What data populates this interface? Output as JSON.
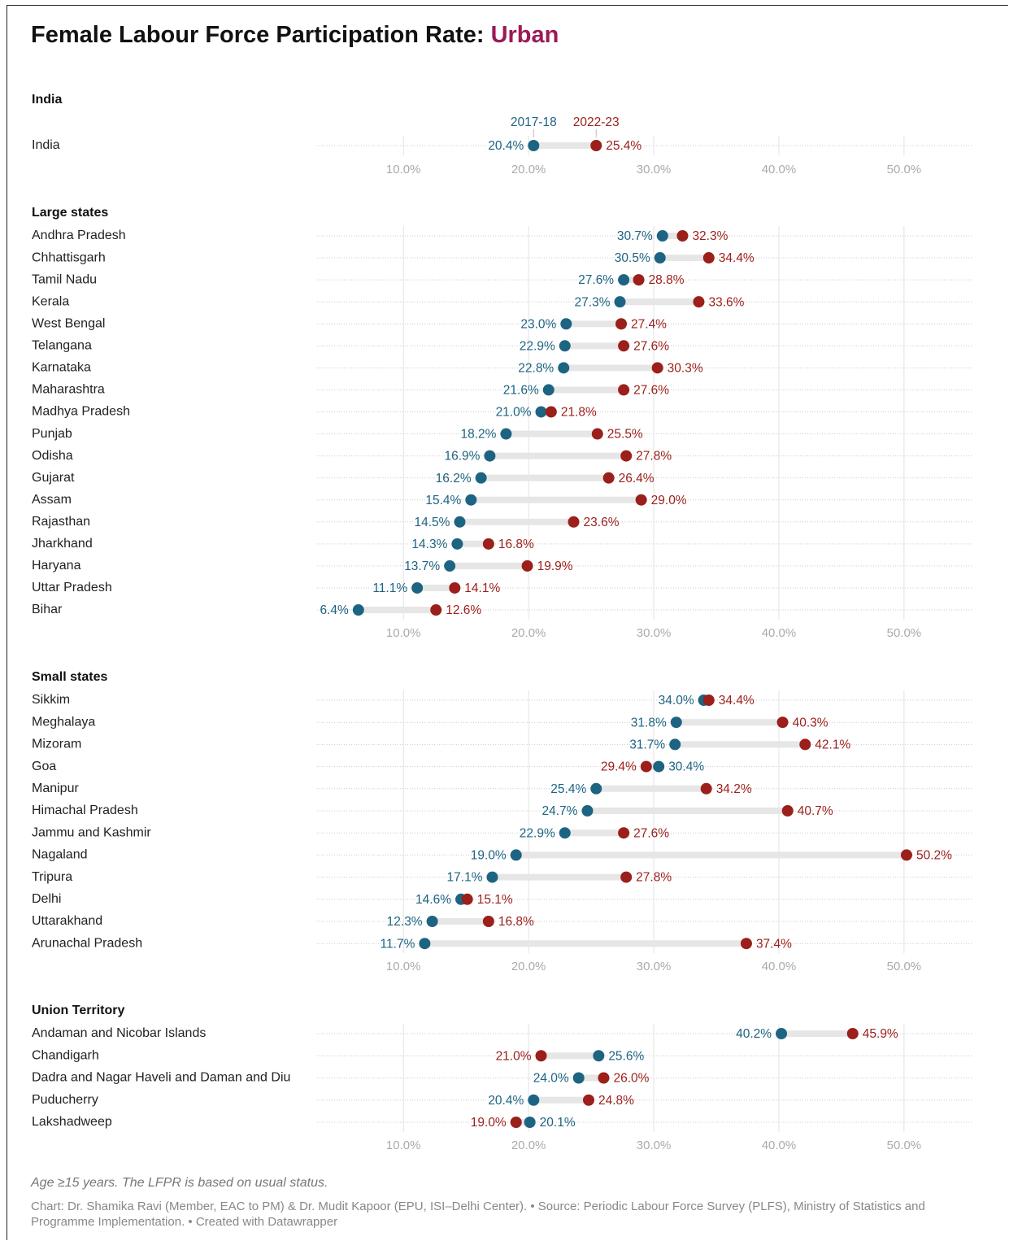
{
  "title": "Female Labour Force Participation Rate:",
  "title_highlight": "Urban",
  "note": "Age ≥15 years. The LFPR is based on usual status.",
  "source": "Chart: Dr. Shamika Ravi (Member, EAC to PM) & Dr. Mudit Kapoor (EPU, ISI–Delhi Center). • Source: Periodic Labour Force Survey (PLFS), Ministry of Statistics and Programme Implementation. • Created with Datawrapper",
  "chart_data": [
    {
      "type": "dot",
      "title": "India",
      "legend": true,
      "categories": [
        "India"
      ],
      "series": [
        {
          "name": "2017-18",
          "color": "#1d6482",
          "values": [
            20.4
          ],
          "value_labels": [
            "20.4%"
          ]
        },
        {
          "name": "2022-23",
          "color": "#9b1f1a",
          "values": [
            25.4
          ],
          "value_labels": [
            "25.4%"
          ]
        }
      ],
      "xlim": [
        3.1,
        55.4
      ],
      "xticks": [
        {
          "value": 10,
          "label": "10.0%"
        },
        {
          "value": 20,
          "label": "20.0%"
        },
        {
          "value": 30,
          "label": "30.0%"
        },
        {
          "value": 40,
          "label": "40.0%"
        },
        {
          "value": 50,
          "label": "50.0%"
        }
      ]
    },
    {
      "type": "dot",
      "title": "Large states",
      "categories": [
        "Andhra Pradesh",
        "Chhattisgarh",
        "Tamil Nadu",
        "Kerala",
        "West Bengal",
        "Telangana",
        "Karnataka",
        "Maharashtra",
        "Madhya Pradesh",
        "Punjab",
        "Odisha",
        "Gujarat",
        "Assam",
        "Rajasthan",
        "Jharkhand",
        "Haryana",
        "Uttar Pradesh",
        "Bihar"
      ],
      "series": [
        {
          "color": "#1d6482",
          "values": [
            30.7,
            30.5,
            27.6,
            27.3,
            23.0,
            22.9,
            22.8,
            21.6,
            21.0,
            18.2,
            16.9,
            16.2,
            15.4,
            14.5,
            14.3,
            13.7,
            11.1,
            6.4
          ],
          "value_labels": [
            "30.7%",
            "30.5%",
            "27.6%",
            "27.3%",
            "23.0%",
            "22.9%",
            "22.8%",
            "21.6%",
            "21.0%",
            "18.2%",
            "16.9%",
            "16.2%",
            "15.4%",
            "14.5%",
            "14.3%",
            "13.7%",
            "11.1%",
            "6.4%"
          ]
        },
        {
          "color": "#9b1f1a",
          "values": [
            32.3,
            34.4,
            28.8,
            33.6,
            27.4,
            27.6,
            30.3,
            27.6,
            21.8,
            25.5,
            27.8,
            26.4,
            29.0,
            23.6,
            16.8,
            19.9,
            14.1,
            12.6
          ],
          "value_labels": [
            "32.3%",
            "34.4%",
            "28.8%",
            "33.6%",
            "27.4%",
            "27.6%",
            "30.3%",
            "27.6%",
            "21.8%",
            "25.5%",
            "27.8%",
            "26.4%",
            "29.0%",
            "23.6%",
            "16.8%",
            "19.9%",
            "14.1%",
            "12.6%"
          ]
        }
      ],
      "xlim": [
        3.1,
        55.4
      ],
      "xticks": [
        {
          "value": 10,
          "label": "10.0%"
        },
        {
          "value": 20,
          "label": "20.0%"
        },
        {
          "value": 30,
          "label": "30.0%"
        },
        {
          "value": 40,
          "label": "40.0%"
        },
        {
          "value": 50,
          "label": "50.0%"
        }
      ]
    },
    {
      "type": "dot",
      "title": "Small states",
      "categories": [
        "Sikkim",
        "Meghalaya",
        "Mizoram",
        "Goa",
        "Manipur",
        "Himachal Pradesh",
        "Jammu and Kashmir",
        "Nagaland",
        "Tripura",
        "Delhi",
        "Uttarakhand",
        "Arunachal Pradesh"
      ],
      "series": [
        {
          "color": "#1d6482",
          "values": [
            34.0,
            31.8,
            31.7,
            30.4,
            25.4,
            24.7,
            22.9,
            19.0,
            17.1,
            14.6,
            12.3,
            11.7
          ],
          "value_labels": [
            "34.0%",
            "31.8%",
            "31.7%",
            "30.4%",
            "25.4%",
            "24.7%",
            "22.9%",
            "19.0%",
            "17.1%",
            "14.6%",
            "12.3%",
            "11.7%"
          ]
        },
        {
          "color": "#9b1f1a",
          "values": [
            34.4,
            40.3,
            42.1,
            29.4,
            34.2,
            40.7,
            27.6,
            50.2,
            27.8,
            15.1,
            16.8,
            37.4
          ],
          "value_labels": [
            "34.4%",
            "40.3%",
            "42.1%",
            "29.4%",
            "34.2%",
            "40.7%",
            "27.6%",
            "50.2%",
            "27.8%",
            "15.1%",
            "16.8%",
            "37.4%"
          ]
        }
      ],
      "xlim": [
        3.1,
        55.4
      ],
      "xticks": [
        {
          "value": 10,
          "label": "10.0%"
        },
        {
          "value": 20,
          "label": "20.0%"
        },
        {
          "value": 30,
          "label": "30.0%"
        },
        {
          "value": 40,
          "label": "40.0%"
        },
        {
          "value": 50,
          "label": "50.0%"
        }
      ]
    },
    {
      "type": "dot",
      "title": "Union Territory",
      "categories": [
        "Andaman and Nicobar Islands",
        "Chandigarh",
        "Dadra and Nagar Haveli and Daman and Diu",
        "Puducherry",
        "Lakshadweep"
      ],
      "series": [
        {
          "color": "#1d6482",
          "values": [
            40.2,
            25.6,
            24.0,
            20.4,
            20.1
          ],
          "value_labels": [
            "40.2%",
            "25.6%",
            "24.0%",
            "20.4%",
            "20.1%"
          ]
        },
        {
          "color": "#9b1f1a",
          "values": [
            45.9,
            21.0,
            26.0,
            24.8,
            19.0
          ],
          "value_labels": [
            "45.9%",
            "21.0%",
            "26.0%",
            "24.8%",
            "19.0%"
          ]
        }
      ],
      "xlim": [
        3.1,
        55.4
      ],
      "xticks": [
        {
          "value": 10,
          "label": "10.0%"
        },
        {
          "value": 20,
          "label": "20.0%"
        },
        {
          "value": 30,
          "label": "30.0%"
        },
        {
          "value": 40,
          "label": "40.0%"
        },
        {
          "value": 50,
          "label": "50.0%"
        }
      ]
    }
  ]
}
